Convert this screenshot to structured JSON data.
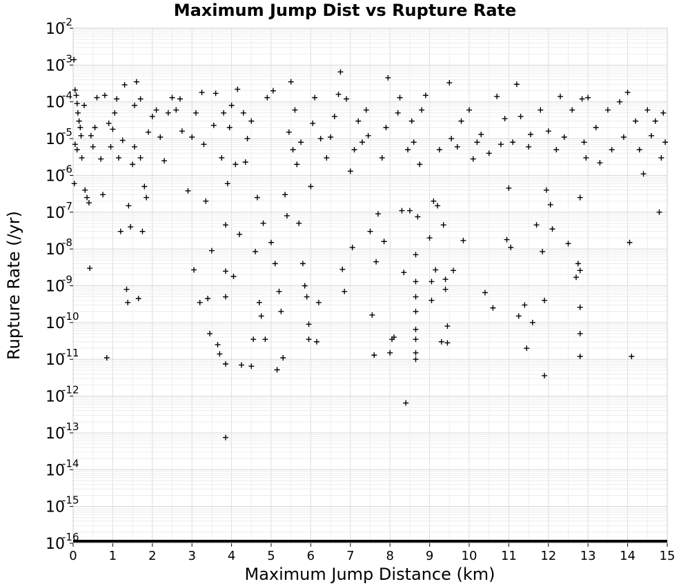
{
  "chart_data": {
    "type": "scatter",
    "title": "Maximum Jump Dist vs Rupture Rate",
    "xlabel": "Maximum Jump Distance (km)",
    "ylabel": "Rupture Rate (/yr)",
    "x_scale": "linear",
    "y_scale": "log",
    "xlim": [
      0,
      15
    ],
    "ylim": [
      1e-16,
      0.01
    ],
    "x_ticks": [
      "0",
      "1",
      "2",
      "3",
      "4",
      "5",
      "6",
      "7",
      "8",
      "9",
      "10",
      "11",
      "12",
      "13",
      "14",
      "15"
    ],
    "y_ticks": [
      {
        "base": "10",
        "exp": "-2"
      },
      {
        "base": "10",
        "exp": "-3"
      },
      {
        "base": "10",
        "exp": "-4"
      },
      {
        "base": "10",
        "exp": "-5"
      },
      {
        "base": "10",
        "exp": "-6"
      },
      {
        "base": "10",
        "exp": "-7"
      },
      {
        "base": "10",
        "exp": "-8"
      },
      {
        "base": "10",
        "exp": "-9"
      },
      {
        "base": "10",
        "exp": "-10"
      },
      {
        "base": "10",
        "exp": "-11"
      },
      {
        "base": "10",
        "exp": "-12"
      },
      {
        "base": "10",
        "exp": "-13"
      },
      {
        "base": "10",
        "exp": "-14"
      },
      {
        "base": "10",
        "exp": "-15"
      },
      {
        "base": "10",
        "exp": "-16"
      }
    ],
    "grid": true,
    "marker": "plus",
    "marker_color": "#000000",
    "series": [
      {
        "points": [
          [
            0.02,
            0.0014
          ],
          [
            0.05,
            0.00021
          ],
          [
            0.08,
            0.00015
          ],
          [
            0.1,
            9e-05
          ],
          [
            0.12,
            5e-05
          ],
          [
            0.15,
            3e-05
          ],
          [
            0.18,
            2e-05
          ],
          [
            0.2,
            1.2e-05
          ],
          [
            0.05,
            7e-06
          ],
          [
            0.1,
            5e-06
          ],
          [
            0.03,
            6e-07
          ],
          [
            0.22,
            3e-06
          ],
          [
            0.3,
            4e-07
          ],
          [
            0.35,
            2.5e-07
          ],
          [
            0.4,
            1.8e-07
          ],
          [
            0.45,
            1.2e-05
          ],
          [
            0.5,
            6e-06
          ],
          [
            0.55,
            2e-05
          ],
          [
            0.6,
            0.00013
          ],
          [
            0.28,
            8e-05
          ],
          [
            0.42,
            3e-09
          ],
          [
            0.7,
            2.8e-06
          ],
          [
            0.75,
            3e-07
          ],
          [
            0.8,
            0.00015
          ],
          [
            0.85,
            1.1e-11
          ],
          [
            0.9,
            2.6e-05
          ],
          [
            0.95,
            6e-06
          ],
          [
            1.0,
            1.8e-05
          ],
          [
            1.05,
            5e-05
          ],
          [
            1.1,
            0.00012
          ],
          [
            1.15,
            3e-06
          ],
          [
            1.2,
            3e-08
          ],
          [
            1.25,
            9e-06
          ],
          [
            1.3,
            0.00029
          ],
          [
            1.35,
            8e-10
          ],
          [
            1.38,
            3.5e-10
          ],
          [
            1.4,
            1.5e-07
          ],
          [
            1.45,
            4e-08
          ],
          [
            1.5,
            2e-06
          ],
          [
            1.55,
            6e-06
          ],
          [
            1.6,
            0.00035
          ],
          [
            1.65,
            4.5e-10
          ],
          [
            1.7,
            0.00012
          ],
          [
            1.75,
            3e-08
          ],
          [
            1.8,
            5e-07
          ],
          [
            1.85,
            2.5e-07
          ],
          [
            1.9,
            1.5e-05
          ],
          [
            1.7,
            3e-06
          ],
          [
            1.55,
            8e-05
          ],
          [
            2.0,
            4e-05
          ],
          [
            2.1,
            6e-05
          ],
          [
            2.2,
            1.1e-05
          ],
          [
            2.3,
            2.5e-06
          ],
          [
            2.4,
            5e-05
          ],
          [
            2.5,
            0.00013
          ],
          [
            2.6,
            6e-05
          ],
          [
            2.7,
            0.00012
          ],
          [
            2.75,
            1.6e-05
          ],
          [
            2.9,
            3.8e-07
          ],
          [
            3.0,
            1.1e-05
          ],
          [
            3.05,
            2.7e-09
          ],
          [
            3.1,
            5e-05
          ],
          [
            3.2,
            3.5e-10
          ],
          [
            3.25,
            0.00018
          ],
          [
            3.3,
            7e-06
          ],
          [
            3.35,
            2e-07
          ],
          [
            3.4,
            4.5e-10
          ],
          [
            3.45,
            5e-11
          ],
          [
            3.5,
            9e-09
          ],
          [
            3.55,
            2.3e-05
          ],
          [
            3.6,
            0.00017
          ],
          [
            3.65,
            2.5e-11
          ],
          [
            3.7,
            1.4e-11
          ],
          [
            3.75,
            3e-06
          ],
          [
            3.8,
            5e-05
          ],
          [
            3.85,
            4.5e-08
          ],
          [
            3.85,
            2.5e-09
          ],
          [
            3.85,
            5e-10
          ],
          [
            3.85,
            7.5e-12
          ],
          [
            3.85,
            7.5e-14
          ],
          [
            3.9,
            6e-07
          ],
          [
            3.95,
            2e-05
          ],
          [
            4.0,
            8e-05
          ],
          [
            4.05,
            1.8e-09
          ],
          [
            4.1,
            2e-06
          ],
          [
            4.15,
            0.00022
          ],
          [
            4.2,
            2.5e-08
          ],
          [
            4.25,
            7e-12
          ],
          [
            4.3,
            5e-05
          ],
          [
            4.35,
            2.3e-06
          ],
          [
            4.4,
            1e-05
          ],
          [
            4.5,
            3e-05
          ],
          [
            4.55,
            3.5e-11
          ],
          [
            4.6,
            8.5e-09
          ],
          [
            4.65,
            2.5e-07
          ],
          [
            4.7,
            3.5e-10
          ],
          [
            4.75,
            1.5e-10
          ],
          [
            4.8,
            5e-08
          ],
          [
            4.85,
            3.5e-11
          ],
          [
            4.9,
            0.00013
          ],
          [
            4.5,
            6.5e-12
          ],
          [
            5.0,
            1.5e-08
          ],
          [
            5.05,
            0.0002
          ],
          [
            5.1,
            4e-09
          ],
          [
            5.15,
            5.2e-12
          ],
          [
            5.2,
            7e-10
          ],
          [
            5.25,
            2e-10
          ],
          [
            5.3,
            1.1e-11
          ],
          [
            5.35,
            3e-07
          ],
          [
            5.4,
            8e-08
          ],
          [
            5.45,
            1.5e-05
          ],
          [
            5.5,
            0.00035
          ],
          [
            5.55,
            5e-06
          ],
          [
            5.6,
            6e-05
          ],
          [
            5.65,
            2e-06
          ],
          [
            5.7,
            5e-08
          ],
          [
            5.75,
            8e-06
          ],
          [
            5.8,
            4e-09
          ],
          [
            5.85,
            1e-09
          ],
          [
            5.9,
            5e-10
          ],
          [
            5.95,
            9e-11
          ],
          [
            5.95,
            3.5e-11
          ],
          [
            6.0,
            5e-07
          ],
          [
            6.05,
            2.6e-05
          ],
          [
            6.1,
            0.00013
          ],
          [
            6.15,
            3e-11
          ],
          [
            6.2,
            3.5e-10
          ],
          [
            6.25,
            1e-05
          ],
          [
            6.4,
            3e-06
          ],
          [
            6.5,
            1.1e-05
          ],
          [
            6.6,
            4e-05
          ],
          [
            6.7,
            0.00016
          ],
          [
            6.75,
            0.00065
          ],
          [
            6.8,
            2.8e-09
          ],
          [
            6.85,
            7e-10
          ],
          [
            6.9,
            0.00012
          ],
          [
            7.0,
            1.3e-06
          ],
          [
            7.05,
            1.1e-08
          ],
          [
            7.1,
            5e-06
          ],
          [
            7.2,
            3e-05
          ],
          [
            7.3,
            8e-06
          ],
          [
            7.4,
            6e-05
          ],
          [
            7.45,
            1.2e-05
          ],
          [
            7.5,
            3e-08
          ],
          [
            7.55,
            1.6e-10
          ],
          [
            7.6,
            1.3e-11
          ],
          [
            7.65,
            4.5e-09
          ],
          [
            7.7,
            9e-08
          ],
          [
            7.8,
            3e-06
          ],
          [
            7.85,
            1.6e-08
          ],
          [
            7.9,
            2e-05
          ],
          [
            7.95,
            0.00045
          ],
          [
            8.0,
            1.5e-11
          ],
          [
            8.05,
            3.5e-11
          ],
          [
            8.1,
            4e-11
          ],
          [
            8.2,
            5e-05
          ],
          [
            8.25,
            0.00013
          ],
          [
            8.3,
            1.1e-07
          ],
          [
            8.35,
            2.3e-09
          ],
          [
            8.4,
            6.5e-13
          ],
          [
            8.45,
            5e-06
          ],
          [
            8.5,
            1.1e-07
          ],
          [
            8.55,
            3e-05
          ],
          [
            8.6,
            8e-06
          ],
          [
            8.65,
            7e-09
          ],
          [
            8.65,
            1.3e-09
          ],
          [
            8.65,
            5e-10
          ],
          [
            8.65,
            2e-10
          ],
          [
            8.65,
            6.5e-11
          ],
          [
            8.65,
            3.5e-11
          ],
          [
            8.65,
            1.5e-11
          ],
          [
            8.65,
            1e-11
          ],
          [
            8.7,
            7.5e-08
          ],
          [
            8.75,
            2e-06
          ],
          [
            8.8,
            6e-05
          ],
          [
            8.9,
            0.00015
          ],
          [
            9.0,
            2e-08
          ],
          [
            9.05,
            1.3e-09
          ],
          [
            9.05,
            4e-10
          ],
          [
            9.1,
            2e-07
          ],
          [
            9.15,
            2.7e-09
          ],
          [
            9.2,
            1.5e-07
          ],
          [
            9.25,
            5e-06
          ],
          [
            9.3,
            3e-11
          ],
          [
            9.35,
            4.5e-08
          ],
          [
            9.4,
            1.5e-09
          ],
          [
            9.4,
            8e-10
          ],
          [
            9.45,
            8e-11
          ],
          [
            9.45,
            2.8e-11
          ],
          [
            9.5,
            0.00033
          ],
          [
            9.55,
            1e-05
          ],
          [
            9.6,
            2.6e-09
          ],
          [
            9.7,
            6e-06
          ],
          [
            9.8,
            3e-05
          ],
          [
            9.85,
            1.7e-08
          ],
          [
            10.0,
            6e-05
          ],
          [
            10.1,
            2.8e-06
          ],
          [
            10.2,
            8e-06
          ],
          [
            10.3,
            1.3e-05
          ],
          [
            10.4,
            6.5e-10
          ],
          [
            10.5,
            4e-06
          ],
          [
            10.6,
            2.5e-10
          ],
          [
            10.7,
            0.00014
          ],
          [
            10.8,
            7e-06
          ],
          [
            10.9,
            3.5e-05
          ],
          [
            10.95,
            1.8e-08
          ],
          [
            11.0,
            4.5e-07
          ],
          [
            11.05,
            1.1e-08
          ],
          [
            11.1,
            8e-06
          ],
          [
            11.2,
            0.0003
          ],
          [
            11.25,
            1.5e-10
          ],
          [
            11.3,
            4e-05
          ],
          [
            11.4,
            3e-10
          ],
          [
            11.45,
            2e-11
          ],
          [
            11.5,
            6e-06
          ],
          [
            11.55,
            1.3e-05
          ],
          [
            11.6,
            1e-10
          ],
          [
            11.7,
            4.5e-08
          ],
          [
            11.8,
            6e-05
          ],
          [
            11.85,
            8.5e-09
          ],
          [
            11.9,
            4e-10
          ],
          [
            11.9,
            3.6e-12
          ],
          [
            11.95,
            4e-07
          ],
          [
            12.0,
            1.6e-05
          ],
          [
            12.05,
            1.6e-07
          ],
          [
            12.1,
            3.5e-08
          ],
          [
            12.2,
            5e-06
          ],
          [
            12.3,
            0.00014
          ],
          [
            12.4,
            1.1e-05
          ],
          [
            12.5,
            1.4e-08
          ],
          [
            12.6,
            6e-05
          ],
          [
            12.7,
            1.7e-09
          ],
          [
            12.75,
            4e-09
          ],
          [
            12.8,
            2.5e-07
          ],
          [
            12.8,
            2.6e-09
          ],
          [
            12.8,
            2.6e-10
          ],
          [
            12.8,
            5e-11
          ],
          [
            12.8,
            1.2e-11
          ],
          [
            12.85,
            0.00012
          ],
          [
            12.9,
            8e-06
          ],
          [
            12.95,
            3e-06
          ],
          [
            13.0,
            0.00013
          ],
          [
            13.2,
            2e-05
          ],
          [
            13.3,
            2.2e-06
          ],
          [
            13.5,
            6e-05
          ],
          [
            13.6,
            5e-06
          ],
          [
            13.8,
            0.0001
          ],
          [
            13.9,
            1.1e-05
          ],
          [
            14.0,
            0.00018
          ],
          [
            14.05,
            1.5e-08
          ],
          [
            14.1,
            1.2e-11
          ],
          [
            14.2,
            3e-05
          ],
          [
            14.3,
            5e-06
          ],
          [
            14.4,
            1.1e-06
          ],
          [
            14.5,
            6e-05
          ],
          [
            14.6,
            1.2e-05
          ],
          [
            14.7,
            3e-05
          ],
          [
            14.8,
            1e-07
          ],
          [
            14.85,
            3e-06
          ],
          [
            14.9,
            5e-05
          ],
          [
            14.95,
            8e-06
          ]
        ]
      }
    ]
  }
}
